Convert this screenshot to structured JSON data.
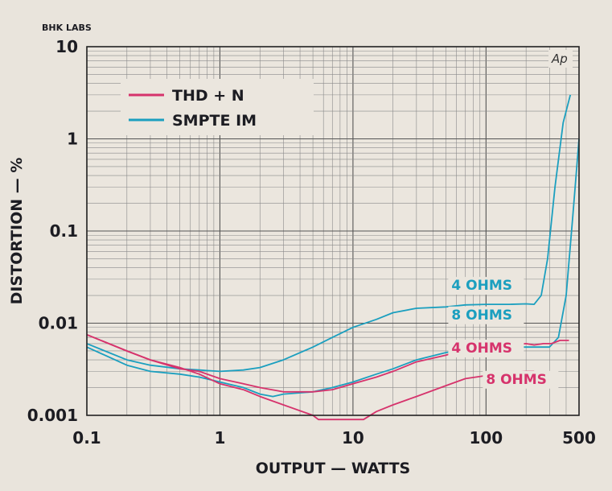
{
  "chart_data": {
    "type": "line",
    "brand": "BHK LABS",
    "badge": "Ap",
    "xlabel": "OUTPUT — WATTS",
    "ylabel": "DISTORTION — %",
    "xscale": "log",
    "yscale": "log",
    "xlim": [
      0.1,
      500
    ],
    "ylim": [
      0.001,
      10
    ],
    "x_ticks": [
      0.1,
      1,
      10,
      100,
      500
    ],
    "x_tick_labels": [
      "0.1",
      "1",
      "10",
      "100",
      "500"
    ],
    "y_ticks": [
      0.001,
      0.01,
      0.1,
      1,
      10
    ],
    "y_tick_labels": [
      "0.001",
      "0.01",
      "0.1",
      "1",
      "10"
    ],
    "grid": true,
    "legend": [
      {
        "label": "THD + N",
        "color": "#d6336c"
      },
      {
        "label": "SMPTE IM",
        "color": "#1b9fbf"
      }
    ],
    "annotations": [
      {
        "text": "4 OHMS",
        "color": "#1b9fbf",
        "x": 55,
        "y": 0.023
      },
      {
        "text": "8 OHMS",
        "color": "#1b9fbf",
        "x": 55,
        "y": 0.011
      },
      {
        "text": "4 OHMS",
        "color": "#d6336c",
        "x": 55,
        "y": 0.0048
      },
      {
        "text": "8 OHMS",
        "color": "#d6336c",
        "x": 100,
        "y": 0.0022
      }
    ],
    "series": [
      {
        "name": "SMPTE IM",
        "label": "4 OHMS",
        "color": "#1b9fbf",
        "x": [
          0.1,
          0.2,
          0.3,
          0.5,
          0.7,
          1,
          1.5,
          2,
          3,
          5,
          7,
          10,
          15,
          20,
          30,
          50,
          70,
          100,
          150,
          200,
          230,
          260,
          290,
          330,
          380,
          430
        ],
        "y": [
          0.006,
          0.004,
          0.0035,
          0.0032,
          0.0031,
          0.003,
          0.0031,
          0.0033,
          0.004,
          0.0055,
          0.007,
          0.009,
          0.011,
          0.013,
          0.0145,
          0.015,
          0.0158,
          0.016,
          0.016,
          0.0162,
          0.016,
          0.02,
          0.05,
          0.3,
          1.5,
          3.0
        ]
      },
      {
        "name": "SMPTE IM",
        "label": "8 OHMS",
        "color": "#1b9fbf",
        "x": [
          0.1,
          0.2,
          0.3,
          0.5,
          0.7,
          1,
          1.5,
          2,
          2.5,
          3,
          5,
          7,
          10,
          15,
          20,
          30,
          50,
          70,
          100,
          150,
          200,
          250,
          300,
          350,
          400,
          450,
          500
        ],
        "y": [
          0.0055,
          0.0035,
          0.003,
          0.0028,
          0.0026,
          0.0023,
          0.002,
          0.0017,
          0.0016,
          0.0017,
          0.0018,
          0.002,
          0.0023,
          0.0028,
          0.0032,
          0.004,
          0.0048,
          0.0052,
          0.0055,
          0.0055,
          0.0055,
          0.0055,
          0.0055,
          0.007,
          0.02,
          0.15,
          1.0
        ]
      },
      {
        "name": "THD + N",
        "label": "4 OHMS",
        "color": "#d6336c",
        "x": [
          0.1,
          0.2,
          0.3,
          0.5,
          0.7,
          1,
          1.5,
          2,
          3,
          5,
          7,
          10,
          15,
          20,
          30,
          50,
          70,
          100,
          150,
          200,
          230,
          270,
          310,
          360,
          420
        ],
        "y": [
          0.0075,
          0.005,
          0.004,
          0.0032,
          0.003,
          0.0025,
          0.0022,
          0.002,
          0.0018,
          0.0018,
          0.0019,
          0.0022,
          0.0026,
          0.003,
          0.0038,
          0.0045,
          0.0052,
          0.0055,
          0.0058,
          0.006,
          0.0058,
          0.006,
          0.006,
          0.0065,
          0.0065
        ]
      },
      {
        "name": "THD + N",
        "label": "8 OHMS",
        "color": "#d6336c",
        "x": [
          0.1,
          0.2,
          0.3,
          0.5,
          0.7,
          1,
          1.5,
          2,
          3,
          5,
          5.5,
          12,
          15,
          20,
          30,
          50,
          70,
          100,
          150,
          200,
          230
        ],
        "y": [
          0.0075,
          0.005,
          0.004,
          0.0033,
          0.0028,
          0.0022,
          0.0019,
          0.0016,
          0.0013,
          0.001,
          0.0009,
          0.0009,
          0.0011,
          0.0013,
          0.0016,
          0.0021,
          0.0025,
          0.0027,
          0.0029,
          0.003,
          0.003
        ]
      }
    ]
  }
}
